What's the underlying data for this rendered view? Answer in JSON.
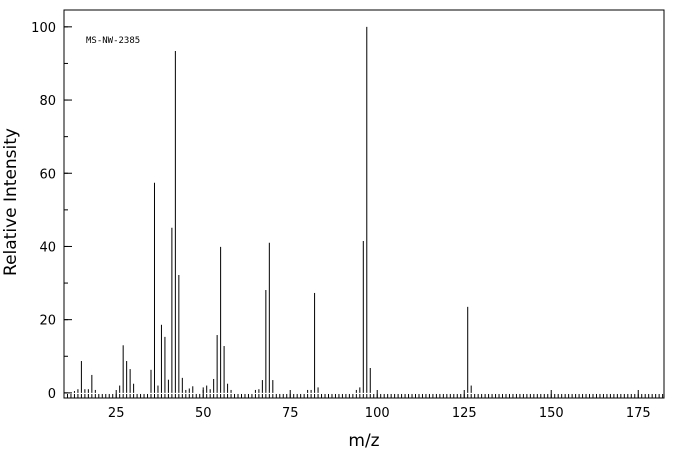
{
  "chart_data": {
    "type": "stem",
    "annotation": "MS-NW-2385",
    "x_label": "m/z",
    "y_label": "Relative Intensity",
    "x": [
      13,
      14,
      15,
      16,
      17,
      18,
      19,
      26,
      27,
      28,
      29,
      30,
      35,
      36,
      37,
      38,
      39,
      40,
      41,
      42,
      43,
      44,
      45,
      46,
      47,
      50,
      51,
      52,
      53,
      54,
      55,
      56,
      57,
      58,
      65,
      66,
      67,
      68,
      69,
      70,
      80,
      81,
      82,
      83,
      94,
      95,
      96,
      97,
      98,
      126,
      127
    ],
    "values": [
      0.5,
      1,
      8.7,
      1,
      1,
      4.9,
      0.8,
      2,
      13,
      8.7,
      6.5,
      2.5,
      6.3,
      57.4,
      2,
      18.6,
      15.3,
      3.6,
      45.1,
      93.4,
      32.2,
      4.1,
      0.8,
      1.2,
      1.8,
      1.5,
      2,
      1,
      3.8,
      15.8,
      39.9,
      12.8,
      2.5,
      0.8,
      0.8,
      1,
      3.5,
      28.1,
      41,
      3.5,
      0.8,
      0.8,
      27.3,
      1.5,
      0.8,
      1.5,
      41.5,
      100,
      6.8,
      23.5,
      2
    ],
    "color": "#000000",
    "xlim": [
      10,
      182.4
    ],
    "ylim": [
      -1.4,
      104.6
    ],
    "xticks": [
      25,
      50,
      75,
      100,
      125,
      150,
      175
    ],
    "yticks": [
      0,
      20,
      40,
      60,
      80,
      100
    ]
  }
}
